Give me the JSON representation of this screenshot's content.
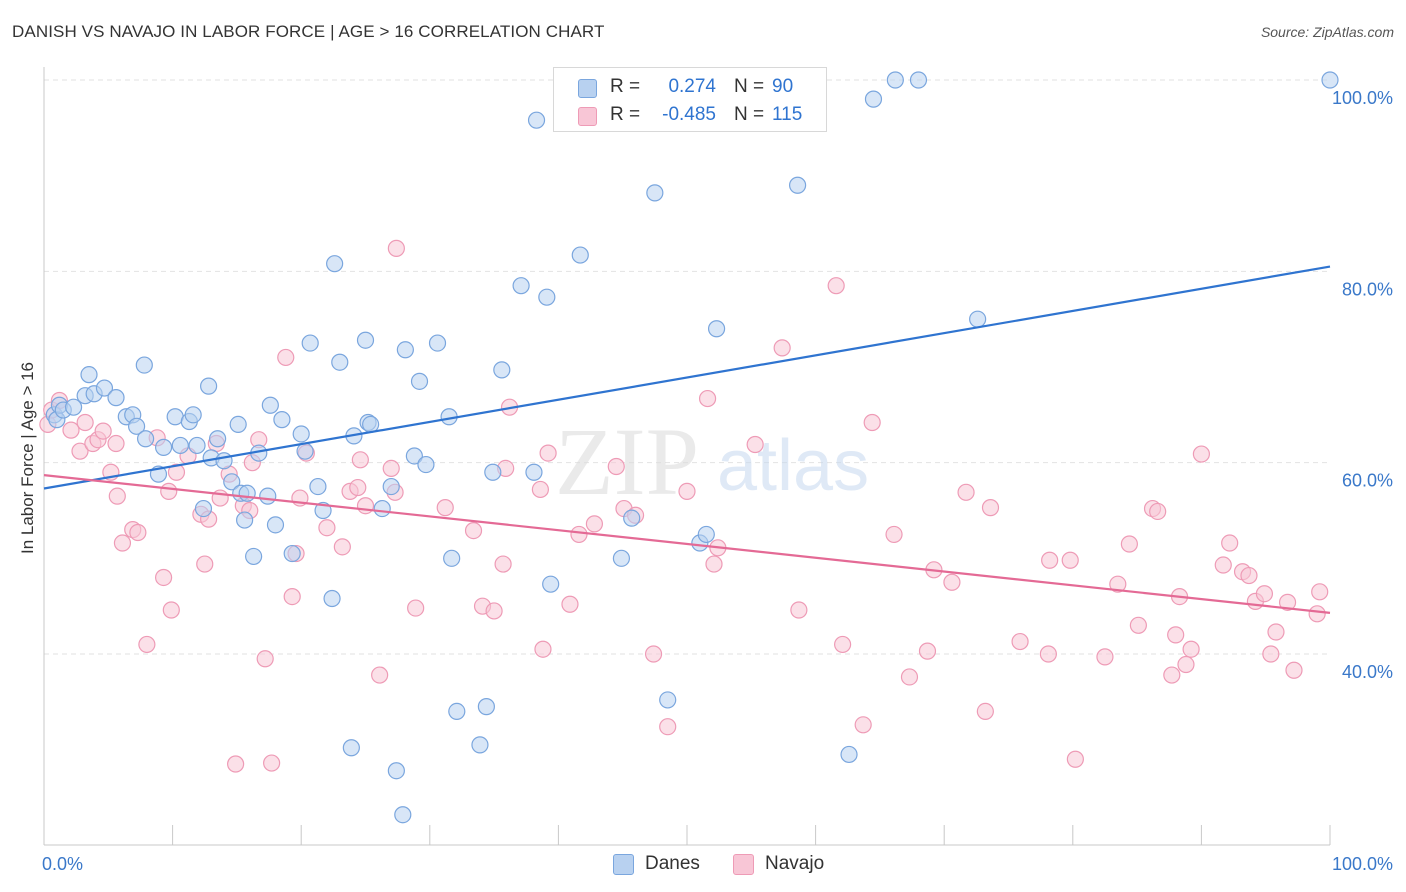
{
  "title": "DANISH VS NAVAJO IN LABOR FORCE | AGE > 16 CORRELATION CHART",
  "source": "Source: ZipAtlas.com",
  "watermark": {
    "zip": "ZIP",
    "atlas": "atlas"
  },
  "legend": {
    "r_label": "R =",
    "n_label": "N =",
    "danes": {
      "r": "0.274",
      "n": "90"
    },
    "navajo": {
      "r": "-0.485",
      "n": "115"
    }
  },
  "colors": {
    "danes_fill": "#b8d1f0",
    "danes_stroke": "#7aa6de",
    "danes_line": "#2f74d0",
    "navajo_fill": "#f8c6d6",
    "navajo_stroke": "#ee9bb6",
    "navajo_line": "#e46a95",
    "axis_tick_label": "#3a78c9",
    "grid": "#e2e2e2"
  },
  "chart_data": {
    "type": "scatter",
    "title": "DANISH VS NAVAJO IN LABOR FORCE | AGE > 16 CORRELATION CHART",
    "xlabel": "",
    "ylabel": "In Labor Force | Age > 16",
    "xlim": [
      0,
      100
    ],
    "ylim": [
      22,
      102
    ],
    "x_tick_labels": [
      "0.0%",
      "100.0%"
    ],
    "y_ticks": [
      40,
      60,
      80,
      100
    ],
    "y_tick_labels": [
      "40.0%",
      "60.0%",
      "80.0%",
      "100.0%"
    ],
    "grid": true,
    "legend_position": "bottom",
    "series": [
      {
        "name": "Danes",
        "r": 0.274,
        "n": 90,
        "trend": {
          "x": [
            0,
            100
          ],
          "y": [
            57.3,
            80.5
          ]
        },
        "points": [
          [
            0.8,
            65.0
          ],
          [
            1.0,
            64.5
          ],
          [
            1.2,
            66.0
          ],
          [
            1.5,
            65.5
          ],
          [
            2.3,
            65.8
          ],
          [
            3.2,
            67.0
          ],
          [
            3.5,
            69.2
          ],
          [
            3.9,
            67.2
          ],
          [
            4.7,
            67.8
          ],
          [
            5.6,
            66.8
          ],
          [
            6.4,
            64.8
          ],
          [
            6.9,
            65.0
          ],
          [
            7.2,
            63.8
          ],
          [
            7.9,
            62.5
          ],
          [
            7.8,
            70.2
          ],
          [
            8.9,
            58.8
          ],
          [
            9.3,
            61.6
          ],
          [
            10.2,
            64.8
          ],
          [
            10.6,
            61.8
          ],
          [
            11.3,
            64.3
          ],
          [
            11.6,
            65.0
          ],
          [
            11.9,
            61.8
          ],
          [
            12.4,
            55.2
          ],
          [
            12.8,
            68.0
          ],
          [
            13.0,
            60.5
          ],
          [
            13.5,
            62.5
          ],
          [
            14.0,
            60.2
          ],
          [
            14.6,
            58.0
          ],
          [
            15.1,
            64.0
          ],
          [
            15.3,
            56.8
          ],
          [
            15.6,
            54.0
          ],
          [
            15.8,
            56.8
          ],
          [
            16.3,
            50.2
          ],
          [
            16.7,
            61.0
          ],
          [
            17.4,
            56.5
          ],
          [
            17.6,
            66.0
          ],
          [
            18.0,
            53.5
          ],
          [
            18.5,
            64.5
          ],
          [
            19.3,
            50.5
          ],
          [
            20.0,
            63.0
          ],
          [
            20.3,
            61.2
          ],
          [
            20.7,
            72.5
          ],
          [
            21.3,
            57.5
          ],
          [
            21.7,
            55.0
          ],
          [
            22.4,
            45.8
          ],
          [
            22.6,
            80.8
          ],
          [
            23.0,
            70.5
          ],
          [
            23.9,
            30.2
          ],
          [
            24.1,
            62.8
          ],
          [
            25.0,
            72.8
          ],
          [
            25.2,
            64.2
          ],
          [
            25.4,
            64.0
          ],
          [
            26.3,
            55.2
          ],
          [
            27.0,
            57.5
          ],
          [
            27.4,
            27.8
          ],
          [
            27.9,
            23.2
          ],
          [
            28.1,
            71.8
          ],
          [
            28.8,
            60.7
          ],
          [
            29.2,
            68.5
          ],
          [
            29.7,
            59.8
          ],
          [
            30.6,
            72.5
          ],
          [
            31.5,
            64.8
          ],
          [
            31.7,
            50.0
          ],
          [
            32.1,
            34.0
          ],
          [
            33.9,
            30.5
          ],
          [
            34.4,
            34.5
          ],
          [
            34.9,
            59.0
          ],
          [
            35.6,
            69.7
          ],
          [
            37.1,
            78.5
          ],
          [
            38.1,
            59.0
          ],
          [
            38.3,
            95.8
          ],
          [
            39.1,
            77.3
          ],
          [
            39.4,
            47.3
          ],
          [
            41.7,
            81.7
          ],
          [
            44.9,
            50.0
          ],
          [
            45.7,
            54.2
          ],
          [
            46.5,
            100.0
          ],
          [
            47.2,
            100.0
          ],
          [
            47.5,
            88.2
          ],
          [
            48.5,
            35.2
          ],
          [
            51.0,
            51.6
          ],
          [
            51.5,
            52.5
          ],
          [
            52.3,
            74.0
          ],
          [
            58.6,
            89.0
          ],
          [
            62.6,
            29.5
          ],
          [
            64.5,
            98.0
          ],
          [
            66.2,
            100.0
          ],
          [
            68.0,
            100.0
          ],
          [
            72.6,
            75.0
          ],
          [
            100.0,
            100.0
          ]
        ]
      },
      {
        "name": "Navajo",
        "r": -0.485,
        "n": 115,
        "trend": {
          "x": [
            0,
            100
          ],
          "y": [
            58.7,
            44.3
          ]
        },
        "points": [
          [
            0.3,
            64.0
          ],
          [
            0.6,
            65.5
          ],
          [
            1.2,
            66.5
          ],
          [
            2.1,
            63.4
          ],
          [
            2.8,
            61.2
          ],
          [
            3.2,
            64.2
          ],
          [
            3.8,
            62.0
          ],
          [
            4.2,
            62.4
          ],
          [
            4.6,
            63.3
          ],
          [
            5.2,
            59.0
          ],
          [
            5.6,
            62.0
          ],
          [
            5.7,
            56.5
          ],
          [
            6.1,
            51.6
          ],
          [
            6.9,
            53.0
          ],
          [
            7.3,
            52.7
          ],
          [
            8.0,
            41.0
          ],
          [
            8.8,
            62.6
          ],
          [
            9.3,
            48.0
          ],
          [
            9.7,
            57.0
          ],
          [
            9.9,
            44.6
          ],
          [
            10.3,
            59.0
          ],
          [
            11.2,
            60.7
          ],
          [
            12.2,
            54.6
          ],
          [
            12.5,
            49.4
          ],
          [
            12.8,
            54.1
          ],
          [
            13.4,
            62.0
          ],
          [
            13.7,
            56.3
          ],
          [
            14.4,
            58.8
          ],
          [
            14.9,
            28.5
          ],
          [
            15.5,
            55.5
          ],
          [
            16.0,
            55.0
          ],
          [
            16.2,
            60.0
          ],
          [
            16.7,
            62.4
          ],
          [
            17.2,
            39.5
          ],
          [
            17.7,
            28.6
          ],
          [
            18.8,
            71.0
          ],
          [
            19.3,
            46.0
          ],
          [
            19.6,
            50.5
          ],
          [
            19.9,
            56.3
          ],
          [
            20.4,
            61.0
          ],
          [
            22.0,
            53.2
          ],
          [
            23.2,
            51.2
          ],
          [
            23.8,
            57.0
          ],
          [
            24.4,
            57.4
          ],
          [
            24.6,
            60.3
          ],
          [
            25.0,
            55.5
          ],
          [
            26.1,
            37.8
          ],
          [
            27.0,
            59.4
          ],
          [
            27.3,
            56.9
          ],
          [
            27.4,
            82.4
          ],
          [
            28.9,
            44.8
          ],
          [
            31.2,
            55.3
          ],
          [
            33.4,
            52.9
          ],
          [
            34.1,
            45.0
          ],
          [
            35.0,
            44.5
          ],
          [
            35.7,
            49.4
          ],
          [
            35.9,
            59.4
          ],
          [
            36.2,
            65.8
          ],
          [
            38.6,
            57.2
          ],
          [
            38.8,
            40.5
          ],
          [
            39.2,
            61.0
          ],
          [
            40.9,
            45.2
          ],
          [
            41.6,
            52.5
          ],
          [
            42.8,
            53.6
          ],
          [
            44.5,
            59.6
          ],
          [
            45.1,
            55.2
          ],
          [
            46.0,
            54.5
          ],
          [
            47.4,
            40.0
          ],
          [
            48.5,
            32.4
          ],
          [
            50.0,
            57.0
          ],
          [
            51.6,
            66.7
          ],
          [
            52.1,
            49.4
          ],
          [
            52.4,
            51.1
          ],
          [
            55.3,
            61.9
          ],
          [
            57.4,
            72.0
          ],
          [
            58.7,
            44.6
          ],
          [
            61.6,
            78.5
          ],
          [
            62.1,
            41.0
          ],
          [
            63.7,
            32.6
          ],
          [
            64.4,
            64.2
          ],
          [
            66.1,
            52.5
          ],
          [
            67.3,
            37.6
          ],
          [
            68.7,
            40.3
          ],
          [
            69.2,
            48.8
          ],
          [
            70.6,
            47.5
          ],
          [
            71.7,
            56.9
          ],
          [
            73.2,
            34.0
          ],
          [
            73.6,
            55.3
          ],
          [
            75.9,
            41.3
          ],
          [
            78.1,
            40.0
          ],
          [
            78.2,
            49.8
          ],
          [
            79.8,
            49.8
          ],
          [
            80.2,
            29.0
          ],
          [
            82.5,
            39.7
          ],
          [
            83.5,
            47.3
          ],
          [
            84.4,
            51.5
          ],
          [
            85.1,
            43.0
          ],
          [
            86.2,
            55.2
          ],
          [
            86.6,
            54.9
          ],
          [
            87.7,
            37.8
          ],
          [
            88.0,
            42.0
          ],
          [
            88.3,
            46.0
          ],
          [
            88.8,
            38.9
          ],
          [
            89.2,
            40.5
          ],
          [
            90.0,
            60.9
          ],
          [
            91.7,
            49.3
          ],
          [
            92.2,
            51.6
          ],
          [
            93.2,
            48.6
          ],
          [
            93.7,
            48.2
          ],
          [
            94.2,
            45.5
          ],
          [
            94.9,
            46.3
          ],
          [
            95.4,
            40.0
          ],
          [
            95.8,
            42.3
          ],
          [
            96.7,
            45.4
          ],
          [
            97.2,
            38.3
          ],
          [
            99.0,
            44.2
          ],
          [
            99.2,
            46.5
          ]
        ]
      }
    ]
  }
}
